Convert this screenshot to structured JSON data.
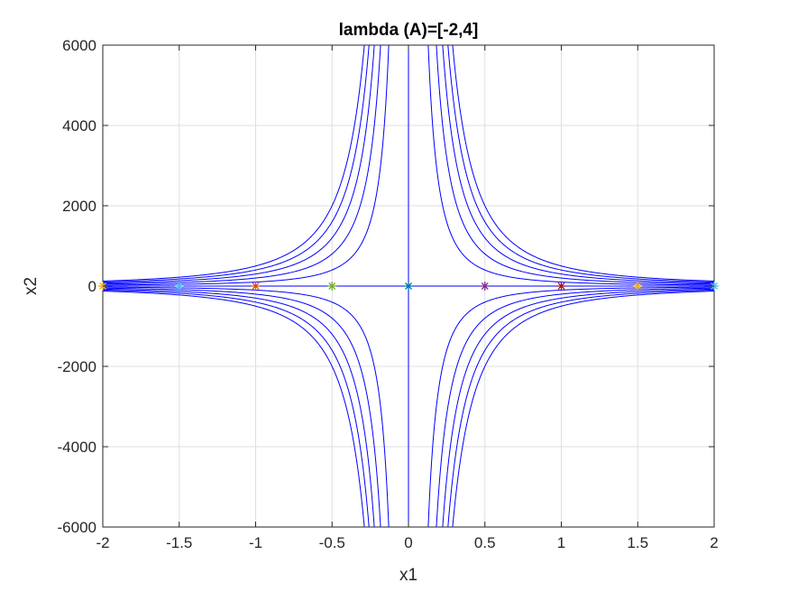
{
  "chart_data": {
    "type": "line",
    "title": "lambda (A)=[-2,4]",
    "xlabel": "x1",
    "ylabel": "x2",
    "xlim": [
      -2,
      2
    ],
    "ylim": [
      -6000,
      6000
    ],
    "grid": true,
    "xticks": [
      -2,
      -1.5,
      -1,
      -0.5,
      0,
      0.5,
      1,
      1.5,
      2
    ],
    "xtick_labels": [
      "-2",
      "-1.5",
      "-1",
      "-0.5",
      "0",
      "0.5",
      "1",
      "1.5",
      "2"
    ],
    "yticks": [
      -6000,
      -4000,
      -2000,
      0,
      2000,
      4000,
      6000
    ],
    "ytick_labels": [
      "-6000",
      "-4000",
      "-2000",
      "0",
      "2000",
      "4000",
      "6000"
    ],
    "trajectory_color": "#0000ff",
    "trajectory_constants": [
      100,
      200,
      300,
      400,
      500,
      -100,
      -200,
      -300,
      -400,
      -500
    ],
    "start_points": [
      {
        "x": -2,
        "y": 0,
        "color": "#edb120"
      },
      {
        "x": -1.5,
        "y": 0,
        "color": "#4dbeee"
      },
      {
        "x": -1,
        "y": 0,
        "color": "#d95319"
      },
      {
        "x": -0.5,
        "y": 0,
        "color": "#77ac30"
      },
      {
        "x": 0,
        "y": 0,
        "color": "#0072bd"
      },
      {
        "x": 0.5,
        "y": 0,
        "color": "#7e2f8e"
      },
      {
        "x": 1,
        "y": 0,
        "color": "#a2142f"
      },
      {
        "x": 1.5,
        "y": 0,
        "color": "#edb120"
      },
      {
        "x": 2,
        "y": 0,
        "color": "#4dbeee"
      }
    ]
  }
}
